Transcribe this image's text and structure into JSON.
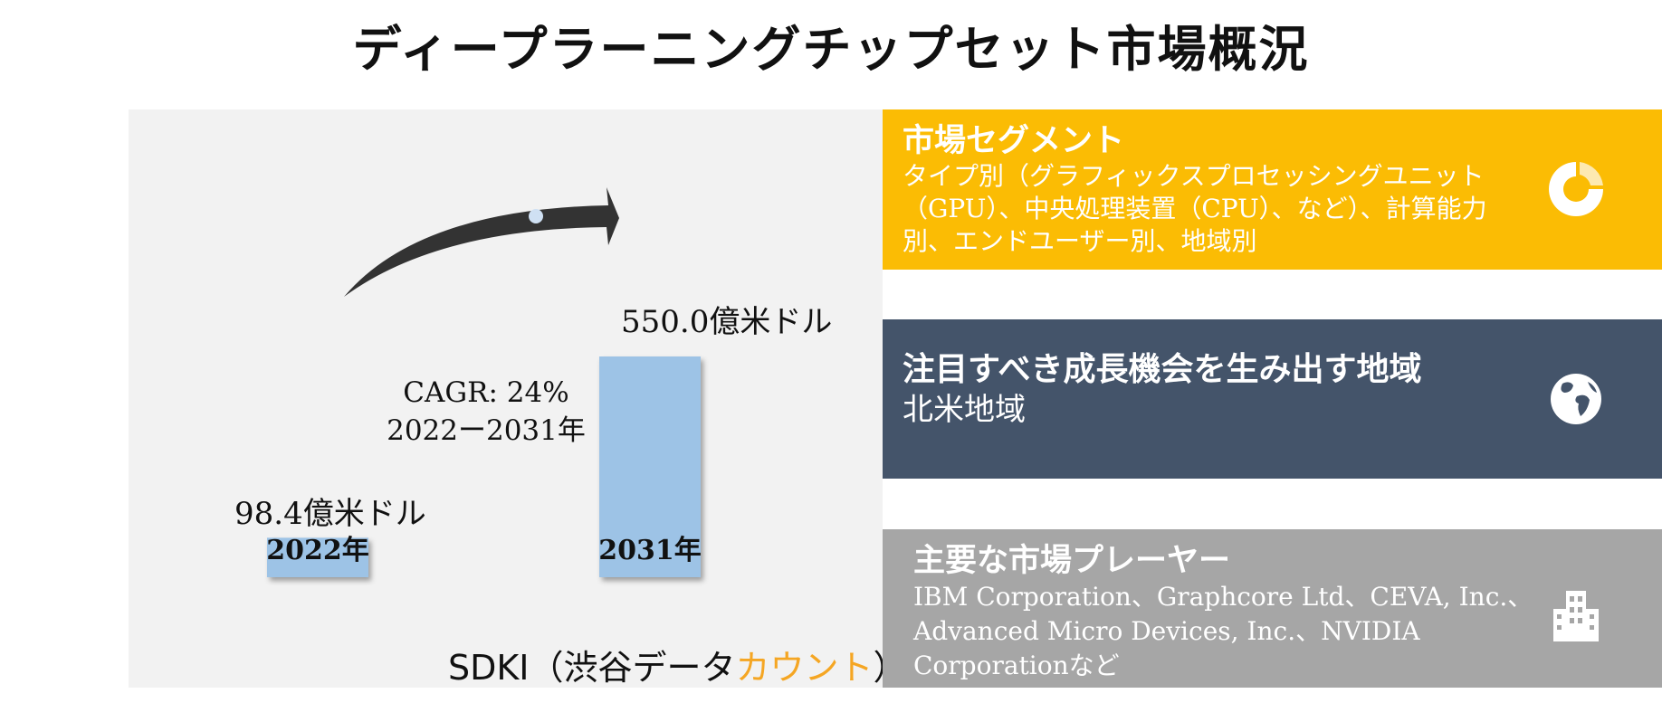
{
  "title": "ディープラーニングチップセット市場概況",
  "chart_data": {
    "type": "bar",
    "categories": [
      "2022年",
      "2031年"
    ],
    "values": [
      98.4,
      550.0
    ],
    "value_labels": [
      "98.4億米ドル",
      "550.0億米ドル"
    ],
    "cagr_label": "CAGR: 24%",
    "cagr_period": "2022ー2031年",
    "bar_color": "#9dc3e6"
  },
  "brand": {
    "prefix": "SDKI（渋谷データ",
    "accent": "カウント",
    "suffix": "）",
    "accent_color": "#f5a623"
  },
  "cards": [
    {
      "title": "市場セグメント",
      "body": "タイプ別（グラフィックスプロセッシングユニット（GPU）、中央処理装置（CPU）、など）、計算能力別、エンドユーザー別、地域別",
      "icon": "donut-chart-icon",
      "color": "#fbbc04"
    },
    {
      "title": "注目すべき成長機会を生み出す地域",
      "body": "北米地域",
      "icon": "globe-icon",
      "color": "#44546a"
    },
    {
      "title": "主要な市場プレーヤー",
      "body": "IBM Corporation、Graphcore Ltd、CEVA, Inc.、Advanced Micro Devices, Inc.、NVIDIA Corporationなど",
      "icon": "building-icon",
      "color": "#a6a6a6"
    }
  ]
}
